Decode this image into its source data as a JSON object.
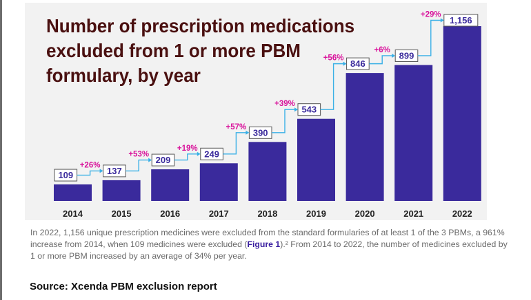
{
  "title": "Number of prescription medications excluded from 1 or more PBM formulary, by year",
  "chart_data": {
    "type": "bar",
    "categories": [
      "2014",
      "2015",
      "2016",
      "2017",
      "2018",
      "2019",
      "2020",
      "2021",
      "2022"
    ],
    "values": [
      109,
      137,
      209,
      249,
      390,
      543,
      846,
      899,
      1156
    ],
    "value_labels": [
      "109",
      "137",
      "209",
      "249",
      "390",
      "543",
      "846",
      "899",
      "1,156"
    ],
    "pct_changes": [
      "",
      "+26%",
      "+53%",
      "+19%",
      "+57%",
      "+39%",
      "+56%",
      "+6%",
      "+29%"
    ],
    "title": "Number of prescription medications excluded from 1 or more PBM formulary, by year",
    "xlabel": "",
    "ylabel": "",
    "ylim": [
      0,
      1300
    ],
    "grid": false,
    "legend": "none",
    "colors": {
      "bar": "#3a2a9c",
      "label_box_text": "#3a2a9c",
      "connector": "#3ab0e6",
      "pct": "#d9129b"
    }
  },
  "caption": {
    "before_link": "In 2022, 1,156 unique prescription medicines were excluded from the standard formularies of at least 1 of the 3 PBMs, a 961% increase from 2014, when 109 medicines were excluded (",
    "link": "Figure 1",
    "after_link": ").² From 2014 to 2022, the number of medicines excluded by 1 or more PBM increased by an average of 34% per year."
  },
  "source": "Source: Xcenda PBM exclusion report"
}
